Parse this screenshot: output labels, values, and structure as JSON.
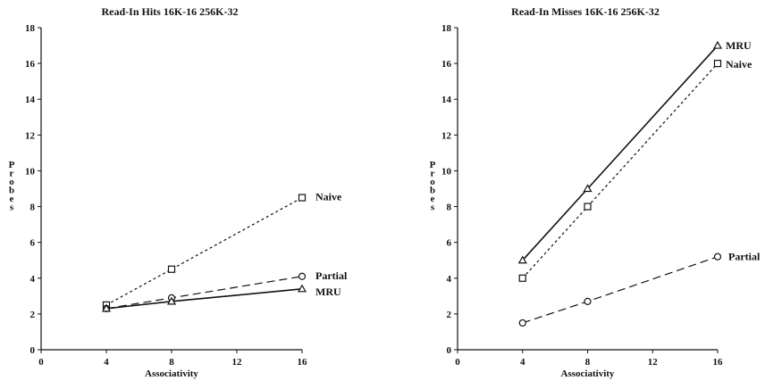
{
  "chart_data": [
    {
      "type": "line",
      "title": "Read-In Hits 16K-16 256K-32",
      "xlabel": "Associativity",
      "ylabel": "Probes",
      "xlim": [
        0,
        16
      ],
      "ylim": [
        0,
        18
      ],
      "xticks": [
        0,
        4,
        8,
        12,
        16
      ],
      "yticks": [
        0,
        2,
        4,
        6,
        8,
        10,
        12,
        14,
        16,
        18
      ],
      "grid": false,
      "series": [
        {
          "name": "Naive",
          "marker": "square",
          "dash": "dotted",
          "x": [
            4,
            8,
            16
          ],
          "y": [
            2.5,
            4.5,
            8.5
          ]
        },
        {
          "name": "Partial",
          "marker": "circle",
          "dash": "long-dash",
          "x": [
            4,
            8,
            16
          ],
          "y": [
            2.3,
            2.9,
            4.1
          ]
        },
        {
          "name": "MRU",
          "marker": "triangle",
          "dash": "solid",
          "x": [
            4,
            8,
            16
          ],
          "y": [
            2.3,
            2.7,
            3.4
          ]
        }
      ]
    },
    {
      "type": "line",
      "title": "Read-In Misses 16K-16 256K-32",
      "xlabel": "Associativity",
      "ylabel": "Probes",
      "xlim": [
        0,
        16
      ],
      "ylim": [
        0,
        18
      ],
      "xticks": [
        0,
        4,
        8,
        12,
        16
      ],
      "yticks": [
        0,
        2,
        4,
        6,
        8,
        10,
        12,
        14,
        16,
        18
      ],
      "grid": false,
      "series": [
        {
          "name": "MRU",
          "marker": "triangle",
          "dash": "solid",
          "x": [
            4,
            8,
            16
          ],
          "y": [
            5.0,
            9.0,
            17.0
          ]
        },
        {
          "name": "Naive",
          "marker": "square",
          "dash": "dotted",
          "x": [
            4,
            8,
            16
          ],
          "y": [
            4.0,
            8.0,
            16.0
          ]
        },
        {
          "name": "Partial",
          "marker": "circle",
          "dash": "long-dash",
          "x": [
            4,
            8,
            16
          ],
          "y": [
            1.5,
            2.7,
            5.2
          ]
        }
      ]
    }
  ]
}
